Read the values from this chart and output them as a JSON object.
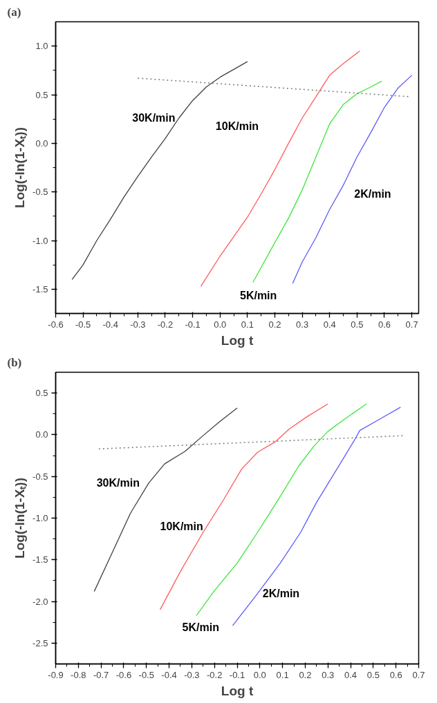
{
  "chart_data": [
    {
      "type": "line",
      "title": "(a)",
      "xlabel": "Log t",
      "ylabel": "Log(-ln(1-Xₜ))",
      "xlim": [
        -0.6,
        0.725
      ],
      "ylim": [
        -1.75,
        1.25
      ],
      "xticks": [
        -0.6,
        -0.5,
        -0.4,
        -0.3,
        -0.2,
        -0.1,
        {
          "value": 0,
          "label": "0.0"
        },
        0.1,
        0.2,
        0.3,
        0.4,
        0.5,
        0.6,
        0.7
      ],
      "yticks": [
        -1.5,
        {
          "value": -1,
          "label": "-1.0"
        },
        -0.5,
        {
          "value": 0,
          "label": "0.0"
        },
        0.5,
        {
          "value": 1,
          "label": "1.0"
        }
      ],
      "grid": false,
      "legend": false,
      "line_style": "solid",
      "series": [
        {
          "name": "30K/min",
          "color": "#404040",
          "x": [
            -0.54,
            -0.5,
            -0.45,
            -0.4,
            -0.35,
            -0.3,
            -0.25,
            -0.2,
            -0.15,
            -0.1,
            -0.05,
            0.0,
            0.05,
            0.1
          ],
          "values": [
            -1.4,
            -1.25,
            -1.0,
            -0.78,
            -0.55,
            -0.34,
            -0.14,
            0.05,
            0.26,
            0.44,
            0.58,
            0.68,
            0.76,
            0.84
          ]
        },
        {
          "name": "10K/min",
          "color": "#ff5a5a",
          "x": [
            -0.07,
            0.0,
            0.05,
            0.1,
            0.15,
            0.2,
            0.25,
            0.3,
            0.35,
            0.4,
            0.45,
            0.51
          ],
          "values": [
            -1.47,
            -1.16,
            -0.96,
            -0.76,
            -0.52,
            -0.27,
            0.0,
            0.26,
            0.48,
            0.7,
            0.82,
            0.95
          ]
        },
        {
          "name": "5K/min",
          "color": "#3ce63c",
          "x": [
            0.12,
            0.2,
            0.25,
            0.3,
            0.35,
            0.4,
            0.45,
            0.5,
            0.55,
            0.59
          ],
          "values": [
            -1.43,
            -1.02,
            -0.77,
            -0.48,
            -0.14,
            0.2,
            0.4,
            0.51,
            0.58,
            0.64
          ]
        },
        {
          "name": "2K/min",
          "color": "#5a5aff",
          "x": [
            0.265,
            0.3,
            0.35,
            0.4,
            0.45,
            0.5,
            0.55,
            0.6,
            0.65,
            0.7
          ],
          "values": [
            -1.44,
            -1.22,
            -0.97,
            -0.68,
            -0.43,
            -0.14,
            0.11,
            0.37,
            0.57,
            0.7
          ]
        },
        {
          "color": "#808080",
          "line_style": "dotted",
          "x": [
            -0.3,
            0.69
          ],
          "values": [
            0.67,
            0.48
          ]
        }
      ]
    },
    {
      "type": "line",
      "title": "(b)",
      "xlabel": "Log t",
      "ylabel": "Log(-ln(1-Xₜ))",
      "xlim": [
        -0.9,
        0.7
      ],
      "ylim": [
        -2.75,
        0.75
      ],
      "xticks": [
        -0.9,
        -0.8,
        -0.7,
        -0.6,
        -0.5,
        -0.4,
        -0.3,
        -0.2,
        -0.1,
        {
          "value": 0,
          "label": "0.0"
        },
        0.1,
        0.2,
        0.3,
        0.4,
        0.5,
        0.6,
        0.7
      ],
      "yticks": [
        -2.5,
        {
          "value": -2,
          "label": "-2.0"
        },
        -1.5,
        {
          "value": -1,
          "label": "-1.0"
        },
        -0.5,
        {
          "value": 0,
          "label": "0.0"
        },
        0.5
      ],
      "grid": false,
      "legend": false,
      "line_style": "solid",
      "series": [
        {
          "name": "30K/min",
          "color": "#404040",
          "x": [
            -0.73,
            -0.65,
            -0.57,
            -0.49,
            -0.42,
            -0.33,
            -0.25,
            -0.18,
            -0.1
          ],
          "values": [
            -1.88,
            -1.41,
            -0.94,
            -0.58,
            -0.35,
            -0.2,
            -0.01,
            0.15,
            0.32
          ]
        },
        {
          "name": "10K/min",
          "color": "#ff5a5a",
          "x": [
            -0.44,
            -0.35,
            -0.25,
            -0.16,
            -0.08,
            -0.01,
            0.07,
            0.13,
            0.21,
            0.3
          ],
          "values": [
            -2.1,
            -1.64,
            -1.17,
            -0.78,
            -0.41,
            -0.21,
            -0.08,
            0.07,
            0.22,
            0.37
          ]
        },
        {
          "name": "5K/min",
          "color": "#3ce63c",
          "x": [
            -0.28,
            -0.2,
            -0.1,
            -0.01,
            0.09,
            0.17,
            0.24,
            0.3,
            0.38,
            0.47
          ],
          "values": [
            -2.17,
            -1.87,
            -1.54,
            -1.17,
            -0.74,
            -0.38,
            -0.13,
            0.04,
            0.2,
            0.37
          ]
        },
        {
          "name": "2K/min",
          "color": "#5a5aff",
          "x": [
            -0.12,
            -0.02,
            0.09,
            0.18,
            0.25,
            0.34,
            0.42,
            0.44,
            0.53,
            0.62
          ],
          "values": [
            -2.29,
            -1.94,
            -1.54,
            -1.17,
            -0.81,
            -0.41,
            -0.05,
            0.05,
            0.19,
            0.33
          ]
        },
        {
          "color": "#808080",
          "line_style": "dotted",
          "x": [
            -0.71,
            0.64
          ],
          "values": [
            -0.17,
            -0.01
          ]
        }
      ]
    }
  ]
}
